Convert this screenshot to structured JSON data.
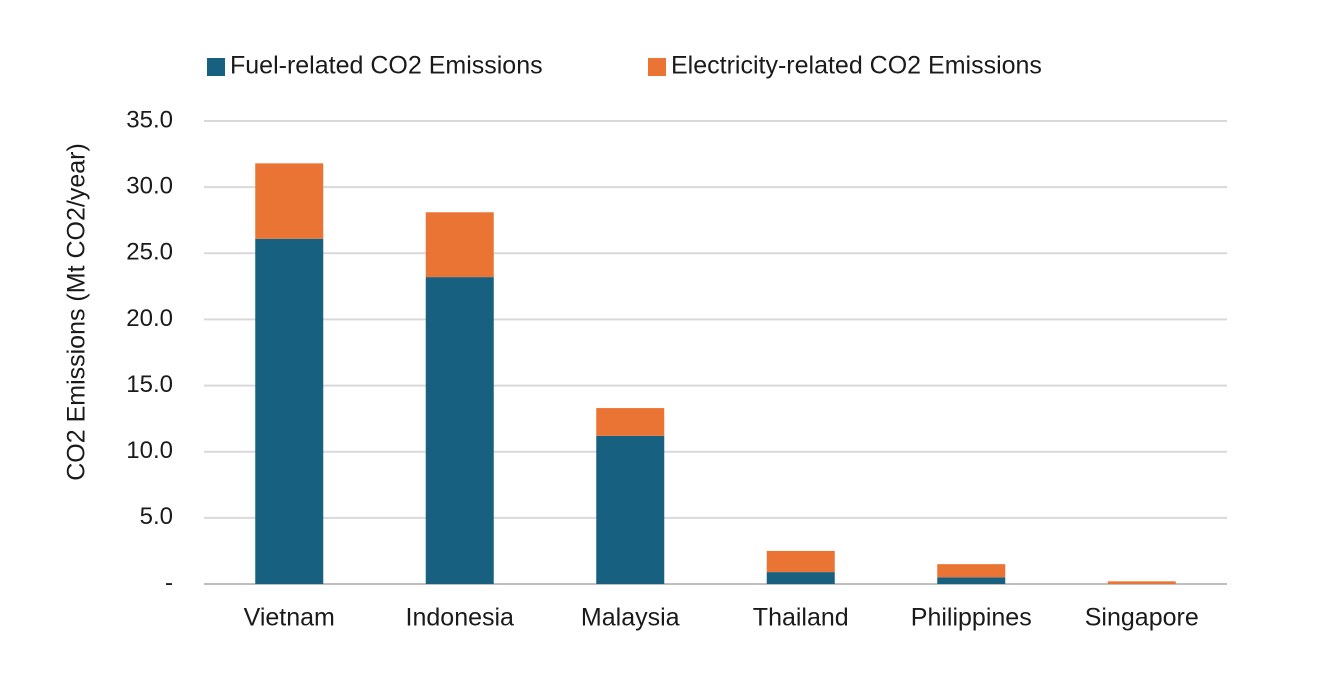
{
  "chart_data": {
    "type": "bar",
    "stacked": true,
    "title": "",
    "xlabel": "",
    "ylabel": "CO2 Emissions (Mt CO2/year)",
    "ylim": [
      0,
      35
    ],
    "yticks": [
      0,
      5,
      10,
      15,
      20,
      25,
      30,
      35
    ],
    "ytick_labels": [
      "-",
      "5.0",
      "10.0",
      "15.0",
      "20.0",
      "25.0",
      "30.0",
      "35.0"
    ],
    "grid": true,
    "legend_position": "top",
    "categories": [
      "Vietnam",
      "Indonesia",
      "Malaysia",
      "Thailand",
      "Philippines",
      "Singapore"
    ],
    "series": [
      {
        "name": "Fuel-related CO2 Emissions",
        "color": "#17607f",
        "values": [
          26.1,
          23.2,
          11.2,
          0.9,
          0.5,
          0.0
        ]
      },
      {
        "name": "Electricity-related CO2 Emissions",
        "color": "#ea7433",
        "values": [
          5.7,
          4.9,
          2.1,
          1.6,
          1.0,
          0.2
        ]
      }
    ]
  },
  "colors": {
    "grid": "#d9d9d9",
    "axis": "#bfbfbf"
  }
}
